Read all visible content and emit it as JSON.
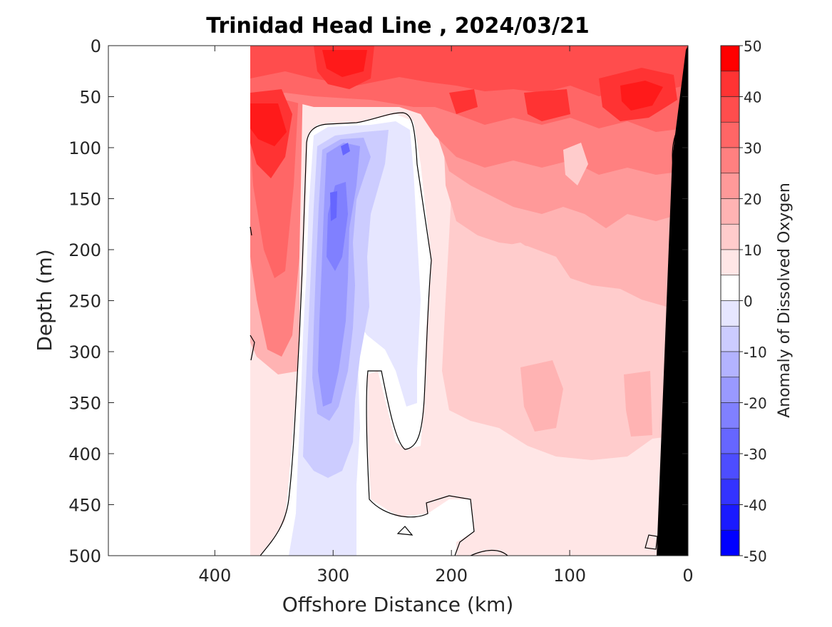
{
  "chart_data": {
    "type": "heatmap",
    "subtype": "filled-contour-section",
    "title": "Trinidad Head Line , 2024/03/21",
    "xlabel": "Offshore Distance (km)",
    "ylabel": "Depth (m)",
    "xlim": [
      490,
      0
    ],
    "x_reversed": true,
    "ylim": [
      500,
      0
    ],
    "y_reversed": true,
    "x_ticks": [
      400,
      300,
      200,
      100,
      0
    ],
    "x_tick_labels": [
      "400",
      "300",
      "200",
      "100",
      "0"
    ],
    "y_ticks": [
      0,
      50,
      100,
      150,
      200,
      250,
      300,
      350,
      400,
      450,
      500
    ],
    "y_tick_labels": [
      "0",
      "50",
      "100",
      "150",
      "200",
      "250",
      "300",
      "350",
      "400",
      "450",
      "500"
    ],
    "data_extent_x_km": [
      370,
      0
    ],
    "grid": false,
    "zero_contour_line": true,
    "bathymetry_mask_color": "#000000",
    "colorbar": {
      "label": "Anomaly of Dissolved Oxygen",
      "range": [
        -50,
        50
      ],
      "step": 5,
      "ticks": [
        50,
        40,
        30,
        20,
        10,
        0,
        -10,
        -20,
        -30,
        -40,
        -50
      ],
      "tick_labels": [
        "50",
        "40",
        "30",
        "20",
        "10",
        "0",
        "-10",
        "-20",
        "-30",
        "-40",
        "-50"
      ],
      "colors_top_to_bottom": [
        "#ff0000",
        "#ff1a1a",
        "#ff3333",
        "#ff4d4d",
        "#ff6666",
        "#ff8080",
        "#ff9999",
        "#ffb3b3",
        "#ffcccc",
        "#ffe6e6",
        "#ffffff",
        "#ffffff",
        "#e6e6ff",
        "#ccccff",
        "#b3b3ff",
        "#9999ff",
        "#8080ff",
        "#6666ff",
        "#4d4dff",
        "#3333ff",
        "#1a1aff",
        "#0000ff"
      ]
    },
    "field_features": [
      {
        "name": "surface-oxygen-maximum",
        "depth_range_m": [
          0,
          80
        ],
        "distance_range_km": [
          370,
          0
        ],
        "anomaly_approx": 40
      },
      {
        "name": "offshore-low-oxygen-column",
        "depth_range_m": [
          80,
          500
        ],
        "distance_range_km": [
          325,
          270
        ],
        "anomaly_approx": -20
      },
      {
        "name": "core-minimum",
        "depth_m": 100,
        "distance_km": 290,
        "anomaly_approx": -25
      },
      {
        "name": "nearshore-positive-region",
        "depth_range_m": [
          100,
          500
        ],
        "distance_range_km": [
          230,
          20
        ],
        "anomaly_approx": 15
      }
    ]
  }
}
